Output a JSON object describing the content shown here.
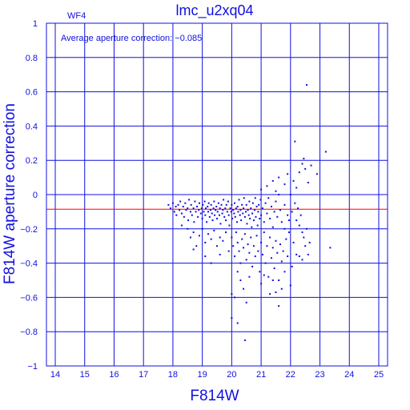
{
  "chart_data": {
    "type": "scatter",
    "title": "lmc_u2xq04",
    "panel_label": "WF4",
    "annotation": "Average aperture correction: −0.085",
    "xlabel": "F814W",
    "ylabel": "F814W aperture correction",
    "xlim": [
      13.7,
      25.3
    ],
    "ylim": [
      -1,
      1
    ],
    "xticks": [
      14,
      15,
      16,
      17,
      18,
      19,
      20,
      21,
      22,
      23,
      24,
      25
    ],
    "yticks": [
      -1,
      -0.8,
      -0.6,
      -0.4,
      -0.2,
      0,
      0.2,
      0.4,
      0.6,
      0.8,
      1
    ],
    "ytick_labels": [
      "−1",
      "−0.8",
      "−0.6",
      "−0.4",
      "−0.2",
      "0",
      "0.2",
      "0.4",
      "0.6",
      "0.8",
      "1"
    ],
    "grid": true,
    "reference_line": {
      "y": -0.085,
      "color": "#ff0000"
    },
    "colors": {
      "axes": "#1010e0",
      "points": "#1010e0",
      "reference_line": "#ff0000"
    },
    "points": [
      [
        17.85,
        -0.06
      ],
      [
        17.92,
        -0.08
      ],
      [
        18.0,
        -0.05
      ],
      [
        18.05,
        -0.1
      ],
      [
        18.1,
        -0.07
      ],
      [
        18.12,
        -0.12
      ],
      [
        18.18,
        -0.06
      ],
      [
        18.22,
        -0.09
      ],
      [
        18.25,
        -0.04
      ],
      [
        18.3,
        -0.11
      ],
      [
        18.35,
        -0.07
      ],
      [
        18.38,
        -0.13
      ],
      [
        18.42,
        -0.05
      ],
      [
        18.45,
        -0.09
      ],
      [
        18.5,
        -0.08
      ],
      [
        18.52,
        -0.15
      ],
      [
        18.55,
        -0.03
      ],
      [
        18.6,
        -0.1
      ],
      [
        18.62,
        -0.06
      ],
      [
        18.65,
        -0.12
      ],
      [
        18.7,
        -0.08
      ],
      [
        18.72,
        -0.16
      ],
      [
        18.75,
        -0.04
      ],
      [
        18.78,
        -0.1
      ],
      [
        18.82,
        -0.07
      ],
      [
        18.85,
        -0.13
      ],
      [
        18.88,
        -0.09
      ],
      [
        18.9,
        -0.05
      ],
      [
        18.95,
        -0.11
      ],
      [
        18.98,
        -0.08
      ],
      [
        19.0,
        -0.14
      ],
      [
        19.02,
        -0.06
      ],
      [
        19.05,
        -0.1
      ],
      [
        19.08,
        -0.04
      ],
      [
        19.1,
        -0.12
      ],
      [
        19.12,
        -0.08
      ],
      [
        19.15,
        -0.16
      ],
      [
        19.18,
        -0.07
      ],
      [
        19.2,
        -0.1
      ],
      [
        19.22,
        -0.05
      ],
      [
        19.25,
        -0.13
      ],
      [
        19.28,
        -0.09
      ],
      [
        19.3,
        -0.06
      ],
      [
        19.33,
        -0.11
      ],
      [
        19.35,
        -0.15
      ],
      [
        19.38,
        -0.08
      ],
      [
        19.4,
        -0.04
      ],
      [
        19.42,
        -0.12
      ],
      [
        19.45,
        -0.09
      ],
      [
        19.48,
        -0.07
      ],
      [
        19.5,
        -0.14
      ],
      [
        19.52,
        -0.1
      ],
      [
        19.55,
        -0.05
      ],
      [
        19.58,
        -0.12
      ],
      [
        19.6,
        -0.08
      ],
      [
        19.62,
        -0.17
      ],
      [
        19.65,
        -0.06
      ],
      [
        19.68,
        -0.11
      ],
      [
        19.7,
        -0.09
      ],
      [
        19.72,
        -0.03
      ],
      [
        19.75,
        -0.13
      ],
      [
        19.78,
        -0.08
      ],
      [
        19.8,
        -0.15
      ],
      [
        19.82,
        -0.06
      ],
      [
        19.85,
        -0.1
      ],
      [
        19.88,
        -0.04
      ],
      [
        19.9,
        -0.12
      ],
      [
        19.92,
        -0.18
      ],
      [
        19.95,
        -0.08
      ],
      [
        19.98,
        -0.1
      ],
      [
        20.0,
        -0.06
      ],
      [
        20.02,
        -0.14
      ],
      [
        20.05,
        -0.09
      ],
      [
        20.08,
        -0.11
      ],
      [
        20.1,
        -0.05
      ],
      [
        20.12,
        -0.13
      ],
      [
        20.15,
        -0.08
      ],
      [
        20.18,
        -0.16
      ],
      [
        20.2,
        -0.07
      ],
      [
        20.22,
        -0.1
      ],
      [
        20.25,
        -0.03
      ],
      [
        20.28,
        -0.12
      ],
      [
        20.3,
        -0.09
      ],
      [
        20.32,
        -0.15
      ],
      [
        20.35,
        -0.06
      ],
      [
        20.38,
        -0.11
      ],
      [
        20.4,
        -0.08
      ],
      [
        20.42,
        -0.02
      ],
      [
        20.45,
        -0.13
      ],
      [
        20.48,
        -0.1
      ],
      [
        20.5,
        -0.06
      ],
      [
        20.52,
        -0.17
      ],
      [
        20.55,
        -0.09
      ],
      [
        20.58,
        -0.12
      ],
      [
        20.6,
        -0.04
      ],
      [
        20.62,
        -0.14
      ],
      [
        20.65,
        -0.08
      ],
      [
        20.68,
        -0.19
      ],
      [
        20.7,
        -0.11
      ],
      [
        20.72,
        -0.05
      ],
      [
        20.75,
        -0.15
      ],
      [
        20.78,
        -0.09
      ],
      [
        20.8,
        -0.02
      ],
      [
        20.82,
        -0.13
      ],
      [
        20.85,
        -0.07
      ],
      [
        20.88,
        -0.18
      ],
      [
        20.9,
        -0.1
      ],
      [
        20.92,
        -0.06
      ],
      [
        20.95,
        -0.14
      ],
      [
        20.98,
        -0.03
      ],
      [
        21.0,
        -0.12
      ],
      [
        21.05,
        -0.08
      ],
      [
        21.1,
        -0.16
      ],
      [
        21.15,
        -0.05
      ],
      [
        21.2,
        -0.11
      ],
      [
        21.25,
        -0.02
      ],
      [
        21.3,
        -0.14
      ],
      [
        21.35,
        -0.07
      ],
      [
        21.4,
        -0.19
      ],
      [
        21.45,
        -0.1
      ],
      [
        21.5,
        -0.04
      ],
      [
        21.55,
        -0.13
      ],
      [
        21.6,
        0.0
      ],
      [
        21.65,
        -0.09
      ],
      [
        21.7,
        -0.16
      ],
      [
        21.8,
        -0.06
      ],
      [
        21.9,
        -0.12
      ],
      [
        18.3,
        -0.18
      ],
      [
        18.5,
        -0.2
      ],
      [
        18.6,
        -0.25
      ],
      [
        18.7,
        -0.22
      ],
      [
        18.8,
        -0.3
      ],
      [
        18.9,
        -0.24
      ],
      [
        19.0,
        -0.2
      ],
      [
        19.1,
        -0.28
      ],
      [
        19.2,
        -0.23
      ],
      [
        19.3,
        -0.26
      ],
      [
        19.4,
        -0.21
      ],
      [
        19.5,
        -0.3
      ],
      [
        19.6,
        -0.25
      ],
      [
        19.7,
        -0.27
      ],
      [
        19.8,
        -0.22
      ],
      [
        19.9,
        -0.33
      ],
      [
        20.0,
        -0.25
      ],
      [
        20.05,
        -0.3
      ],
      [
        20.1,
        -0.36
      ],
      [
        20.15,
        -0.22
      ],
      [
        20.2,
        -0.28
      ],
      [
        20.25,
        -0.33
      ],
      [
        20.3,
        -0.4
      ],
      [
        20.35,
        -0.26
      ],
      [
        20.4,
        -0.31
      ],
      [
        20.45,
        -0.23
      ],
      [
        20.5,
        -0.38
      ],
      [
        20.55,
        -0.29
      ],
      [
        20.6,
        -0.34
      ],
      [
        20.65,
        -0.25
      ],
      [
        20.7,
        -0.42
      ],
      [
        20.75,
        -0.3
      ],
      [
        20.8,
        -0.36
      ],
      [
        20.85,
        -0.24
      ],
      [
        20.9,
        -0.33
      ],
      [
        20.95,
        -0.45
      ],
      [
        21.0,
        -0.28
      ],
      [
        21.05,
        -0.35
      ],
      [
        21.1,
        -0.22
      ],
      [
        21.15,
        -0.4
      ],
      [
        21.2,
        -0.3
      ],
      [
        21.25,
        -0.48
      ],
      [
        21.3,
        -0.25
      ],
      [
        21.35,
        -0.37
      ],
      [
        21.4,
        -0.31
      ],
      [
        21.45,
        -0.43
      ],
      [
        21.5,
        -0.27
      ],
      [
        21.55,
        -0.34
      ],
      [
        21.6,
        -0.5
      ],
      [
        21.65,
        -0.29
      ],
      [
        21.7,
        -0.39
      ],
      [
        21.75,
        -0.33
      ],
      [
        21.8,
        -0.45
      ],
      [
        21.85,
        -0.26
      ],
      [
        21.9,
        -0.36
      ],
      [
        21.95,
        -0.22
      ],
      [
        18.7,
        -0.32
      ],
      [
        19.1,
        -0.36
      ],
      [
        19.3,
        -0.4
      ],
      [
        19.6,
        -0.35
      ],
      [
        20.2,
        -0.45
      ],
      [
        20.3,
        -0.5
      ],
      [
        20.4,
        -0.55
      ],
      [
        20.6,
        -0.48
      ],
      [
        21.0,
        -0.52
      ],
      [
        21.1,
        -0.47
      ],
      [
        21.3,
        -0.58
      ],
      [
        21.4,
        -0.5
      ],
      [
        21.5,
        -0.57
      ],
      [
        21.7,
        -0.55
      ],
      [
        21.6,
        -0.65
      ],
      [
        22.0,
        -0.53
      ],
      [
        20.0,
        -0.58
      ],
      [
        20.1,
        -0.6
      ],
      [
        20.5,
        -0.63
      ],
      [
        20.2,
        -0.75
      ],
      [
        20.45,
        -0.85
      ],
      [
        20.0,
        -0.72
      ],
      [
        21.0,
        0.03
      ],
      [
        21.2,
        0.05
      ],
      [
        21.4,
        0.08
      ],
      [
        21.5,
        0.02
      ],
      [
        21.6,
        0.1
      ],
      [
        21.8,
        0.06
      ],
      [
        21.9,
        0.12
      ],
      [
        22.0,
        0.0
      ],
      [
        22.1,
        0.08
      ],
      [
        22.2,
        0.04
      ],
      [
        22.3,
        0.13
      ],
      [
        22.4,
        0.18
      ],
      [
        22.45,
        0.21
      ],
      [
        22.5,
        0.15
      ],
      [
        22.6,
        0.07
      ],
      [
        22.7,
        0.17
      ],
      [
        22.9,
        0.12
      ],
      [
        23.2,
        0.25
      ],
      [
        22.55,
        0.64
      ],
      [
        22.15,
        0.31
      ],
      [
        22.05,
        -0.1
      ],
      [
        22.15,
        -0.05
      ],
      [
        22.2,
        -0.15
      ],
      [
        22.25,
        -0.08
      ],
      [
        22.3,
        -0.18
      ],
      [
        22.35,
        -0.12
      ],
      [
        22.4,
        -0.22
      ],
      [
        22.45,
        -0.25
      ],
      [
        22.5,
        -0.3
      ],
      [
        22.55,
        -0.2
      ],
      [
        22.6,
        -0.35
      ],
      [
        22.65,
        -0.28
      ],
      [
        22.1,
        -0.28
      ],
      [
        22.2,
        -0.35
      ],
      [
        22.4,
        -0.38
      ],
      [
        23.35,
        -0.31
      ],
      [
        21.8,
        -0.2
      ],
      [
        21.95,
        -0.15
      ],
      [
        22.05,
        -0.42
      ],
      [
        22.3,
        -0.36
      ]
    ]
  }
}
